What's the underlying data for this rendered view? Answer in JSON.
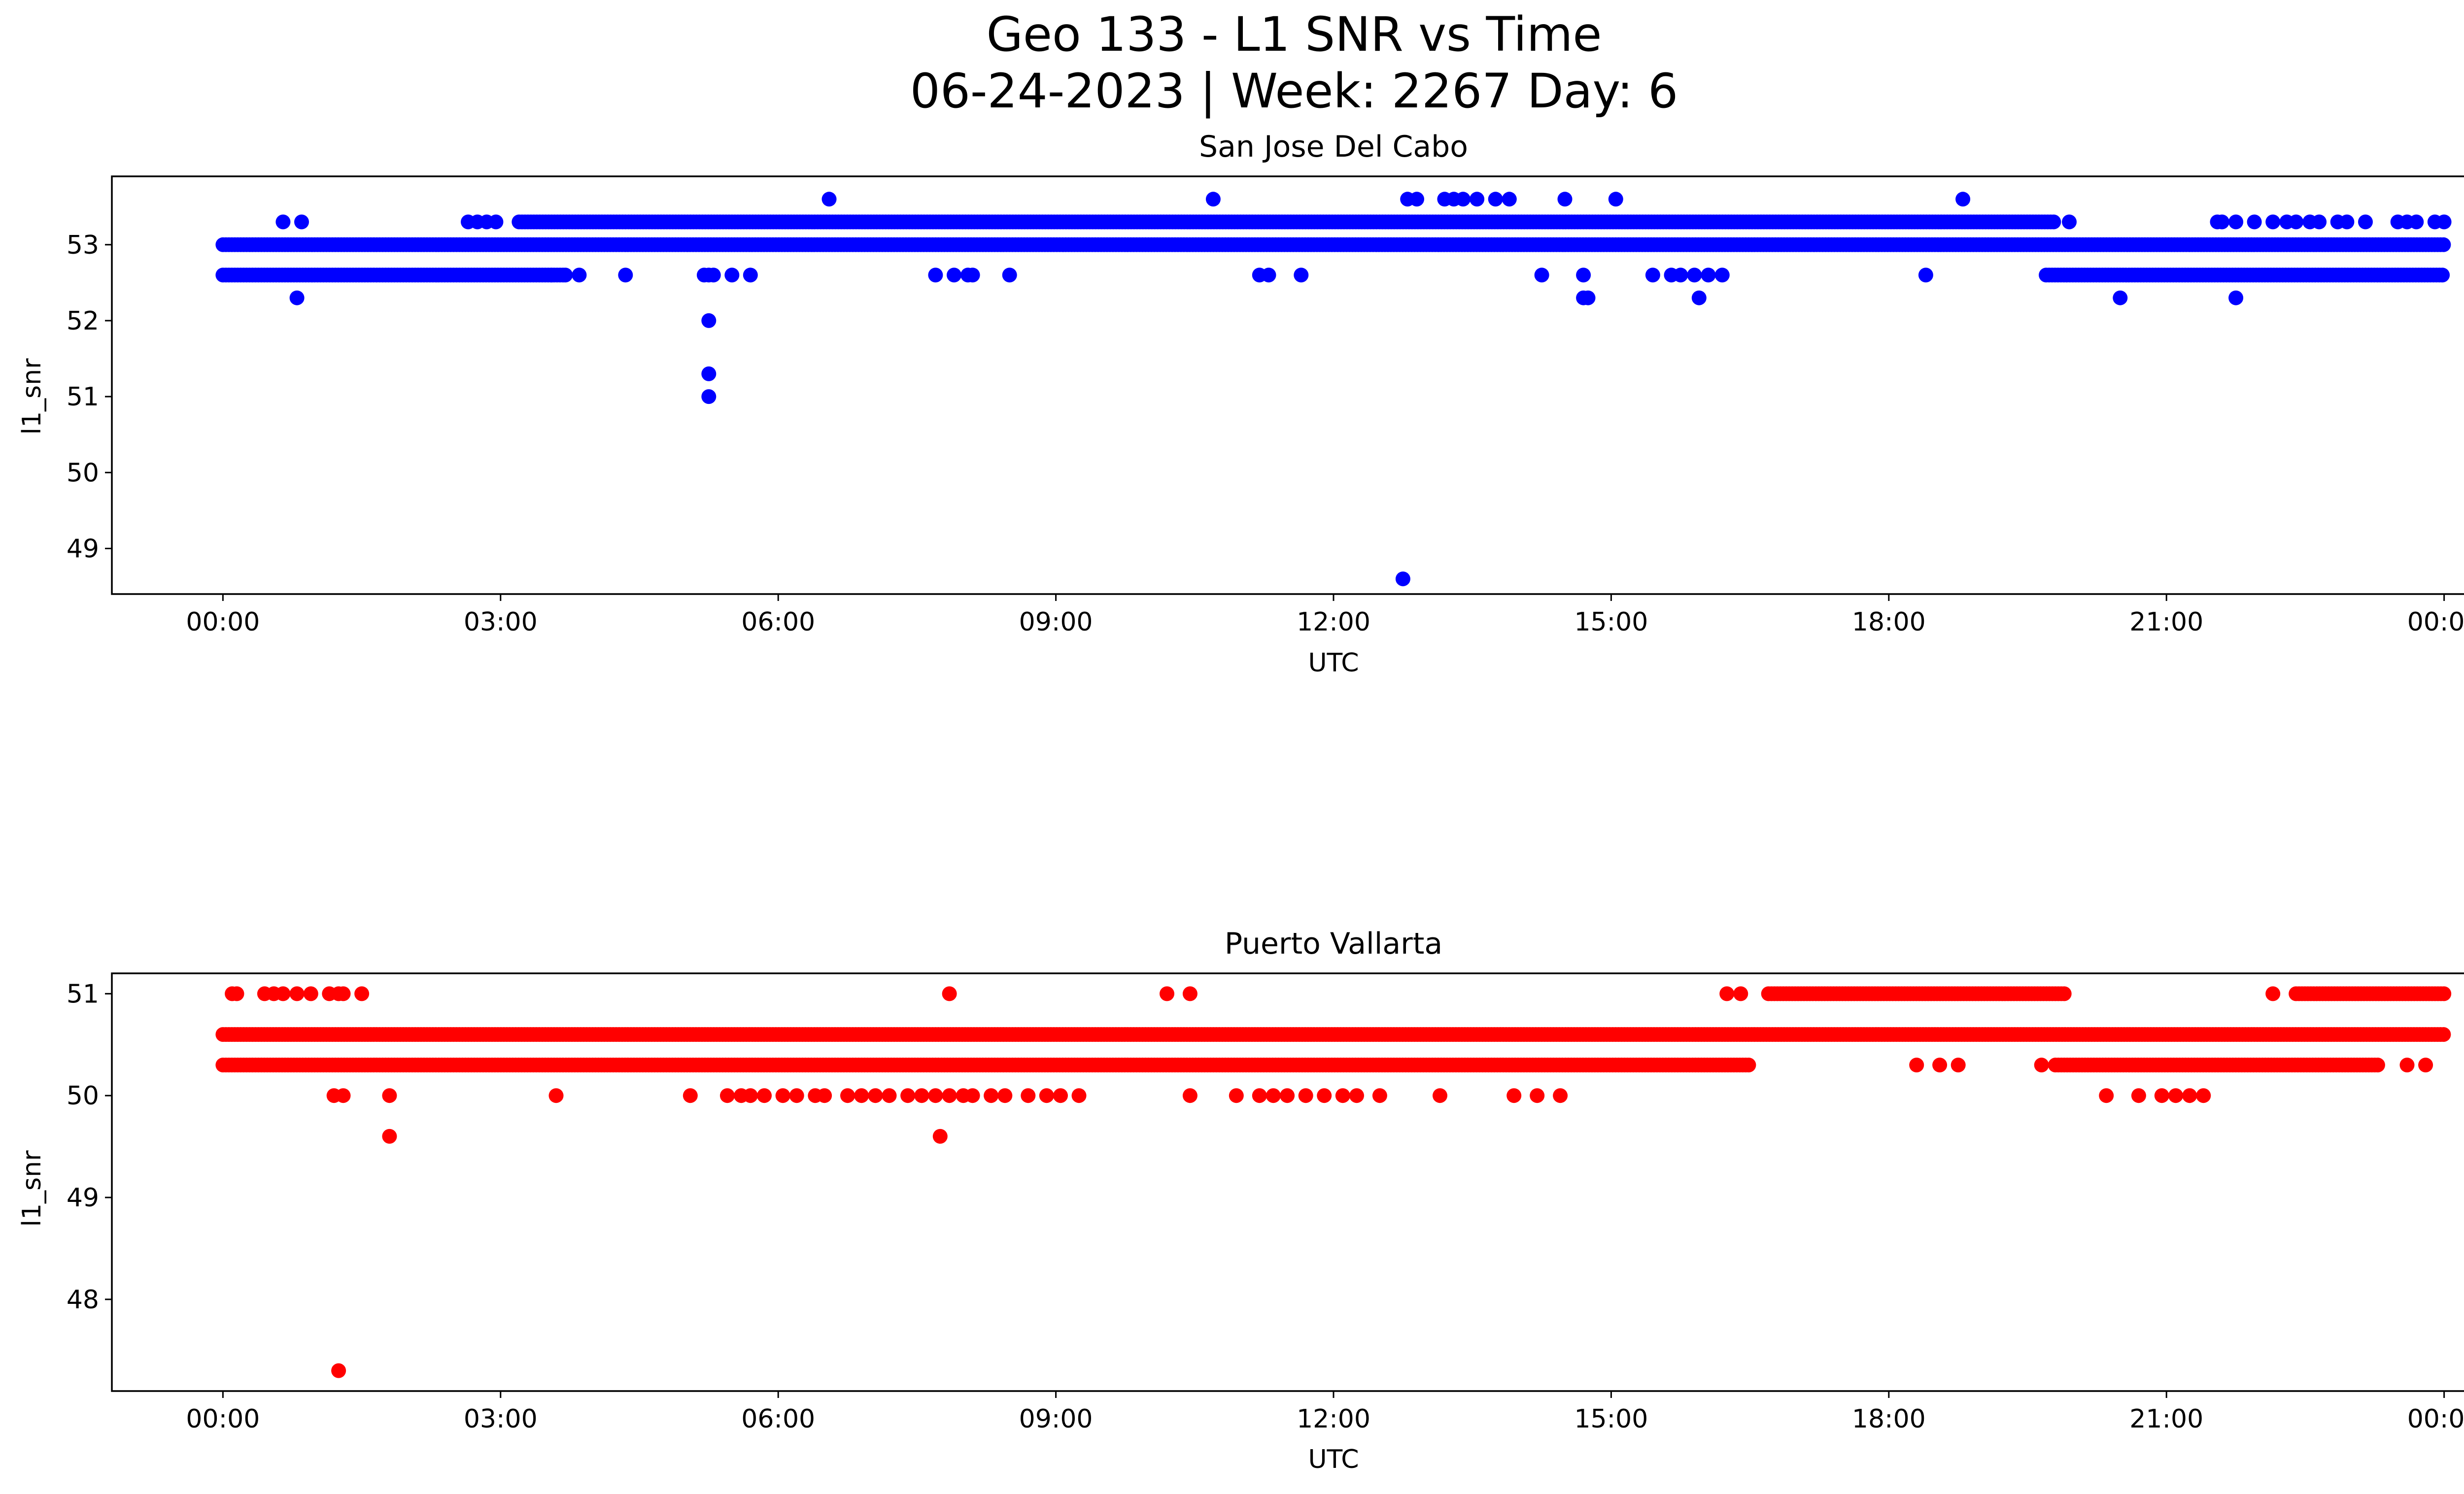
{
  "figure": {
    "title_line1": "Geo 133 - L1 SNR vs Time",
    "title_line2": "06-24-2023 | Week: 2267 Day: 6"
  },
  "chart_data": [
    {
      "type": "scatter",
      "title": "San Jose Del Cabo",
      "xlabel": "UTC",
      "ylabel": "l1_snr",
      "color": "#0000ff",
      "x_unit": "hours UTC since 2023-06-24 00:00",
      "xlim": [
        -1.2,
        25.2
      ],
      "ylim": [
        48.4,
        53.9
      ],
      "xticks": [
        0,
        3,
        6,
        9,
        12,
        15,
        18,
        21,
        24
      ],
      "xtick_labels": [
        "00:00",
        "03:00",
        "06:00",
        "09:00",
        "12:00",
        "15:00",
        "18:00",
        "21:00",
        "00:00"
      ],
      "yticks": [
        49,
        50,
        51,
        52,
        53
      ],
      "bands": [
        {
          "y": 53.0,
          "x_ranges": [
            [
              0,
              24
            ]
          ]
        },
        {
          "y": 52.6,
          "x_ranges": [
            [
              0,
              3.7
            ],
            [
              19.7,
              24
            ]
          ]
        },
        {
          "y": 53.3,
          "x_ranges": [
            [
              3.2,
              19.8
            ]
          ]
        }
      ],
      "points": [
        [
          0.65,
          53.3
        ],
        [
          0.85,
          53.3
        ],
        [
          0.8,
          52.3
        ],
        [
          2.65,
          53.3
        ],
        [
          2.75,
          53.3
        ],
        [
          2.85,
          53.3
        ],
        [
          2.95,
          53.3
        ],
        [
          3.55,
          52.6
        ],
        [
          3.7,
          52.6
        ],
        [
          3.85,
          52.6
        ],
        [
          4.35,
          52.6
        ],
        [
          5.2,
          52.6
        ],
        [
          5.25,
          52.6
        ],
        [
          5.3,
          52.6
        ],
        [
          5.25,
          52.0
        ],
        [
          5.25,
          51.3
        ],
        [
          5.25,
          51.0
        ],
        [
          5.5,
          52.6
        ],
        [
          5.7,
          52.6
        ],
        [
          6.55,
          53.6
        ],
        [
          7.7,
          52.6
        ],
        [
          7.9,
          52.6
        ],
        [
          8.05,
          52.6
        ],
        [
          8.1,
          52.6
        ],
        [
          8.5,
          52.6
        ],
        [
          10.7,
          53.6
        ],
        [
          11.2,
          52.6
        ],
        [
          11.3,
          52.6
        ],
        [
          11.65,
          52.6
        ],
        [
          12.75,
          48.6
        ],
        [
          12.8,
          53.6
        ],
        [
          12.9,
          53.6
        ],
        [
          13.2,
          53.6
        ],
        [
          13.3,
          53.6
        ],
        [
          13.4,
          53.6
        ],
        [
          13.55,
          53.6
        ],
        [
          13.75,
          53.6
        ],
        [
          13.9,
          53.6
        ],
        [
          14.25,
          52.6
        ],
        [
          14.5,
          53.6
        ],
        [
          14.7,
          52.6
        ],
        [
          14.7,
          52.3
        ],
        [
          14.75,
          52.3
        ],
        [
          15.05,
          53.6
        ],
        [
          15.45,
          52.6
        ],
        [
          15.65,
          52.6
        ],
        [
          15.75,
          52.6
        ],
        [
          15.9,
          52.6
        ],
        [
          15.95,
          52.3
        ],
        [
          16.05,
          52.6
        ],
        [
          16.2,
          52.6
        ],
        [
          18.4,
          52.6
        ],
        [
          18.8,
          53.6
        ],
        [
          19.95,
          53.3
        ],
        [
          20.5,
          52.3
        ],
        [
          21.55,
          53.3
        ],
        [
          21.6,
          53.3
        ],
        [
          21.75,
          53.3
        ],
        [
          21.75,
          52.3
        ],
        [
          21.95,
          53.3
        ],
        [
          22.15,
          53.3
        ],
        [
          22.3,
          53.3
        ],
        [
          22.4,
          53.3
        ],
        [
          22.55,
          53.3
        ],
        [
          22.65,
          53.3
        ],
        [
          22.85,
          53.3
        ],
        [
          22.95,
          53.3
        ],
        [
          23.15,
          53.3
        ],
        [
          23.5,
          53.3
        ],
        [
          23.6,
          53.3
        ],
        [
          23.7,
          53.3
        ],
        [
          23.9,
          53.3
        ],
        [
          24.0,
          53.3
        ]
      ]
    },
    {
      "type": "scatter",
      "title": "Puerto Vallarta",
      "xlabel": "UTC",
      "ylabel": "l1_snr",
      "color": "#ff0000",
      "x_unit": "hours UTC since 2023-06-24 00:00",
      "xlim": [
        -1.2,
        25.2
      ],
      "ylim": [
        47.1,
        51.2
      ],
      "xticks": [
        0,
        3,
        6,
        9,
        12,
        15,
        18,
        21,
        24
      ],
      "xtick_labels": [
        "00:00",
        "03:00",
        "06:00",
        "09:00",
        "12:00",
        "15:00",
        "18:00",
        "21:00",
        "00:00"
      ],
      "yticks": [
        48,
        49,
        50,
        51
      ],
      "bands": [
        {
          "y": 50.6,
          "x_ranges": [
            [
              0,
              24
            ]
          ]
        },
        {
          "y": 50.3,
          "x_ranges": [
            [
              0,
              16.5
            ],
            [
              19.8,
              23.3
            ]
          ]
        },
        {
          "y": 51.0,
          "x_ranges": [
            [
              16.7,
              19.9
            ],
            [
              22.4,
              24
            ]
          ]
        }
      ],
      "points": [
        [
          0.1,
          51.0
        ],
        [
          0.15,
          51.0
        ],
        [
          0.45,
          51.0
        ],
        [
          0.55,
          51.0
        ],
        [
          0.65,
          51.0
        ],
        [
          0.8,
          51.0
        ],
        [
          0.95,
          51.0
        ],
        [
          1.15,
          51.0
        ],
        [
          1.25,
          51.0
        ],
        [
          1.3,
          51.0
        ],
        [
          1.5,
          51.0
        ],
        [
          1.2,
          50.0
        ],
        [
          1.3,
          50.0
        ],
        [
          1.8,
          50.0
        ],
        [
          1.8,
          49.6
        ],
        [
          1.25,
          47.3
        ],
        [
          3.6,
          50.0
        ],
        [
          5.05,
          50.0
        ],
        [
          5.45,
          50.0
        ],
        [
          5.6,
          50.0
        ],
        [
          5.7,
          50.0
        ],
        [
          5.85,
          50.0
        ],
        [
          6.05,
          50.0
        ],
        [
          6.2,
          50.0
        ],
        [
          6.4,
          50.0
        ],
        [
          6.5,
          50.0
        ],
        [
          6.75,
          50.0
        ],
        [
          6.9,
          50.0
        ],
        [
          7.05,
          50.0
        ],
        [
          7.2,
          50.0
        ],
        [
          7.4,
          50.0
        ],
        [
          7.55,
          50.0
        ],
        [
          7.7,
          50.0
        ],
        [
          7.85,
          50.0
        ],
        [
          8.0,
          50.0
        ],
        [
          8.1,
          50.0
        ],
        [
          8.3,
          50.0
        ],
        [
          8.45,
          50.0
        ],
        [
          8.7,
          50.0
        ],
        [
          8.9,
          50.0
        ],
        [
          9.05,
          50.0
        ],
        [
          9.25,
          50.0
        ],
        [
          7.75,
          49.6
        ],
        [
          7.85,
          51.0
        ],
        [
          10.2,
          51.0
        ],
        [
          10.45,
          51.0
        ],
        [
          10.45,
          50.0
        ],
        [
          10.95,
          50.0
        ],
        [
          11.2,
          50.0
        ],
        [
          11.35,
          50.0
        ],
        [
          11.5,
          50.0
        ],
        [
          11.7,
          50.0
        ],
        [
          11.9,
          50.0
        ],
        [
          12.1,
          50.0
        ],
        [
          12.25,
          50.0
        ],
        [
          12.5,
          50.0
        ],
        [
          13.15,
          50.0
        ],
        [
          13.95,
          50.0
        ],
        [
          14.2,
          50.0
        ],
        [
          14.45,
          50.0
        ],
        [
          16.25,
          51.0
        ],
        [
          16.4,
          51.0
        ],
        [
          18.3,
          50.3
        ],
        [
          18.55,
          50.3
        ],
        [
          18.75,
          50.3
        ],
        [
          19.65,
          50.3
        ],
        [
          20.35,
          50.0
        ],
        [
          20.7,
          50.0
        ],
        [
          20.95,
          50.0
        ],
        [
          21.1,
          50.0
        ],
        [
          21.25,
          50.0
        ],
        [
          21.4,
          50.0
        ],
        [
          22.15,
          51.0
        ],
        [
          23.6,
          50.3
        ],
        [
          23.8,
          50.3
        ]
      ]
    }
  ]
}
